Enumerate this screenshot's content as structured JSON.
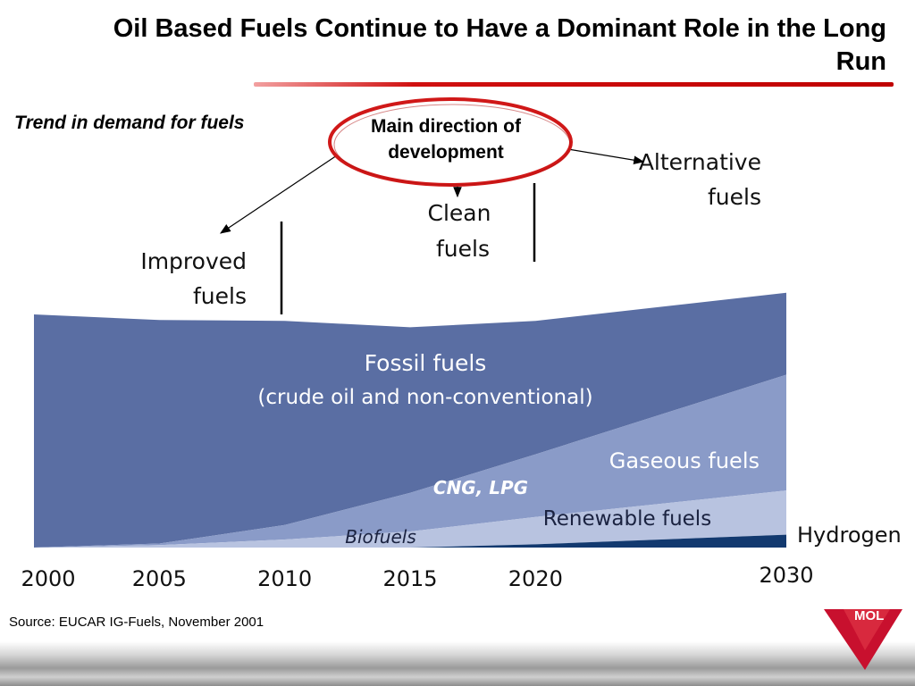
{
  "title": "Oil Based Fuels Continue to Have a Dominant Role in the Long Run",
  "subtitle": "Trend in demand for fuels",
  "callout": {
    "line1": "Main direction of",
    "line2": "development"
  },
  "source": "Source: EUCAR IG-Fuels, November 2001",
  "colors": {
    "fossil": "#5a6ea3",
    "gaseous": "#8a9bc8",
    "renewable": "#b8c3e0",
    "hydrogen": "#12396f",
    "ellipse": "#d01818",
    "accent": "#c00000"
  },
  "chart_data": {
    "type": "area",
    "stacked": true,
    "x": [
      2000,
      2005,
      2010,
      2015,
      2020,
      2030
    ],
    "xticks": [
      "2000",
      "2005",
      "2010",
      "2015",
      "2020",
      "2030"
    ],
    "series": [
      {
        "name": "Hydrogen",
        "values": [
          0,
          0,
          0,
          0,
          0.4,
          1.6
        ]
      },
      {
        "name": "Renewable fuels",
        "values": [
          0,
          0.3,
          1.0,
          2.0,
          3.4,
          5.5
        ]
      },
      {
        "name": "Gaseous fuels",
        "values": [
          0,
          0.2,
          1.8,
          4.8,
          7.8,
          14.4
        ]
      },
      {
        "name": "Fossil fuels",
        "values": [
          29,
          27.8,
          25.4,
          20.6,
          16.6,
          10.2
        ]
      }
    ],
    "ylim": [
      0,
      50
    ],
    "area_labels": {
      "fossil_line1": "Fossil fuels",
      "fossil_line2": "(crude oil and non-conventional)",
      "gaseous": "Gaseous fuels",
      "cng": "CNG, LPG",
      "renewable": "Renewable fuels",
      "biofuels": "Biofuels",
      "hydrogen": "Hydrogen"
    },
    "annotations": {
      "improved_line1": "Improved",
      "improved_line2": "fuels",
      "clean_line1": "Clean",
      "clean_line2": "fuels",
      "alternative_line1": "Alternative",
      "alternative_line2": "fuels"
    }
  }
}
